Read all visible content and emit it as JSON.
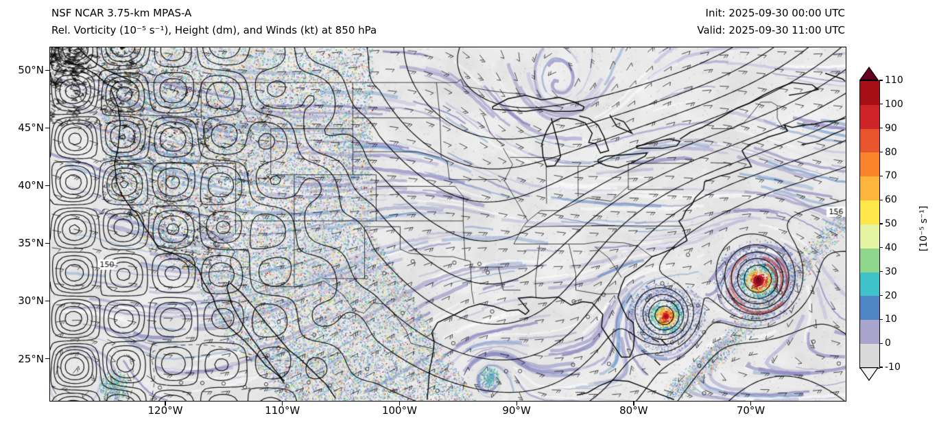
{
  "header": {
    "title_line1": "NSF NCAR 3.75-km MPAS-A",
    "title_line2": "Rel. Vorticity (10⁻⁵ s⁻¹), Height (dm), and Winds (kt) at 850 hPa",
    "init_label": "Init: 2025-09-30 00:00 UTC",
    "valid_label": "Valid: 2025-09-30 11:00 UTC"
  },
  "axes": {
    "x_ticks": [
      {
        "label": "120°W",
        "lon": 120
      },
      {
        "label": "110°W",
        "lon": 110
      },
      {
        "label": "100°W",
        "lon": 100
      },
      {
        "label": "90°W",
        "lon": 90
      },
      {
        "label": "80°W",
        "lon": 80
      },
      {
        "label": "70°W",
        "lon": 70
      }
    ],
    "y_ticks": [
      {
        "label": "25°N",
        "lat": 25
      },
      {
        "label": "30°N",
        "lat": 30
      },
      {
        "label": "35°N",
        "lat": 35
      },
      {
        "label": "40°N",
        "lat": 40
      },
      {
        "label": "45°N",
        "lat": 45
      },
      {
        "label": "50°N",
        "lat": 50
      }
    ]
  },
  "colorbar": {
    "label": "[10⁻⁵ s⁻¹]",
    "ticks": [
      110,
      100,
      90,
      80,
      70,
      60,
      50,
      40,
      30,
      20,
      10,
      0,
      -10
    ],
    "segment_colors_bottom_to_top": [
      "#d9d9d9",
      "#a8a4ce",
      "#4f86c6",
      "#3fc2c9",
      "#8fd78c",
      "#e4f4a3",
      "#fde74a",
      "#fdb53c",
      "#f9842c",
      "#e8542b",
      "#cf2427",
      "#a50f15"
    ],
    "under_color": "#f5f5f5",
    "over_color": "#67001f"
  },
  "chart_data": {
    "type": "heatmap",
    "title": "Rel. Vorticity (10⁻⁵ s⁻¹), Height (dm), and Winds (kt) at 850 hPa",
    "model": "NSF NCAR 3.75-km MPAS-A",
    "init_time": "2025-09-30 00:00 UTC",
    "valid_time": "2025-09-30 11:00 UTC",
    "level": "850 hPa",
    "variable": "relative vorticity",
    "units": "10⁻⁵ s⁻¹",
    "overlays": [
      "geopotential height contours (dm)",
      "wind barbs (kt)"
    ],
    "x_axis": {
      "ticks": [
        "120°W",
        "110°W",
        "100°W",
        "90°W",
        "80°W",
        "70°W"
      ],
      "approx_range": [
        "130°W",
        "62°W"
      ]
    },
    "y_axis": {
      "ticks": [
        "25°N",
        "30°N",
        "35°N",
        "40°N",
        "45°N",
        "50°N"
      ],
      "approx_range": [
        "21.5°N",
        "52°N"
      ]
    },
    "colorbar_range": [
      -10,
      110
    ],
    "colorbar_tick_step": 10,
    "contour_labels": [
      {
        "value": "150",
        "approx_lon": "125°W",
        "approx_lat": "33°N"
      },
      {
        "value": "156",
        "approx_lon": "63°W",
        "approx_lat": "38°N"
      }
    ],
    "notable_features": [
      {
        "name": "tropical-cyclone-west",
        "approx_lon": "77°W",
        "approx_lat": "28.8°N",
        "description": "intense cyclonic vorticity maximum (>110×10⁻⁵ s⁻¹) with concentric tightly-packed height contours"
      },
      {
        "name": "tropical-cyclone-east",
        "approx_lon": "69.4°W",
        "approx_lat": "31.8°N",
        "description": "intense cyclonic vorticity maximum (>110×10⁻⁵ s⁻¹) with spiral bands near Bermuda"
      },
      {
        "name": "terrain-vorticity-noise",
        "region": "western US / Rockies / Mexican Sierra",
        "description": "dense small-scale ±vorticity speckle over mountainous terrain"
      },
      {
        "name": "vorticity-filaments",
        "region": "central and eastern US, Atlantic",
        "description": "elongated 0–20×10⁻⁵ s⁻¹ lavender/blue filaments aligned with flow"
      }
    ]
  }
}
